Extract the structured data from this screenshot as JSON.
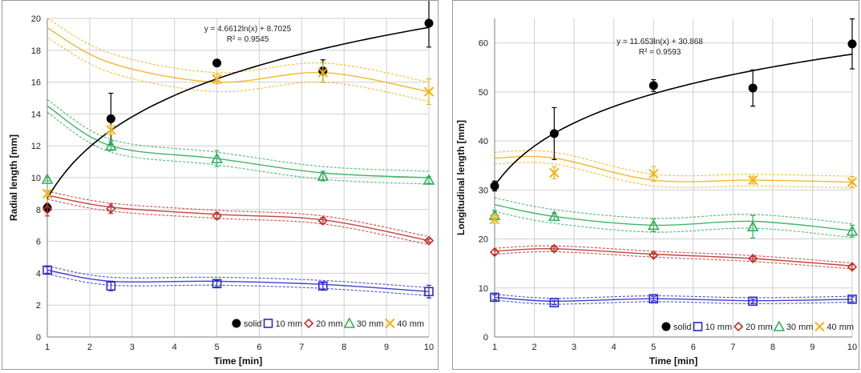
{
  "colors": {
    "solid": "#000000",
    "10 mm": "#2b2bc9",
    "20 mm": "#c0302a",
    "30 mm": "#2fae5a",
    "40 mm": "#f0b418",
    "grid": "#d0d0d0"
  },
  "chart_data": [
    {
      "type": "scatter",
      "xlabel": "Time [min]",
      "ylabel": "Radial length [mm]",
      "xlim": [
        1,
        10
      ],
      "ylim": [
        0,
        20
      ],
      "xticks": [
        1,
        2,
        3,
        4,
        5,
        6,
        7,
        8,
        9,
        10
      ],
      "yticks": [
        0,
        2,
        4,
        6,
        8,
        10,
        12,
        14,
        16,
        18,
        20
      ],
      "grid": true,
      "legend_position": "bottom-right",
      "x": [
        1,
        2.5,
        5,
        7.5,
        10
      ],
      "series": [
        {
          "name": "solid",
          "marker": "circle",
          "values": [
            8.1,
            13.7,
            17.2,
            16.7,
            19.7
          ],
          "error": [
            0.2,
            1.6,
            0.2,
            0.7,
            1.5
          ]
        },
        {
          "name": "10 mm",
          "marker": "square",
          "values": [
            4.2,
            3.2,
            3.35,
            3.2,
            2.85
          ],
          "error": [
            0.2,
            0.3,
            0.2,
            0.2,
            0.4
          ]
        },
        {
          "name": "20 mm",
          "marker": "diamond",
          "values": [
            8.0,
            8.05,
            7.6,
            7.3,
            6.05
          ],
          "error": [
            0.4,
            0.3,
            0.2,
            0.2,
            0.1
          ]
        },
        {
          "name": "30 mm",
          "marker": "triangle",
          "values": [
            9.9,
            12.0,
            11.2,
            10.1,
            9.85
          ],
          "error": [
            0.1,
            0.3,
            0.5,
            0.3,
            0.2
          ]
        },
        {
          "name": "40 mm",
          "marker": "x",
          "values": [
            9.0,
            13.0,
            16.2,
            16.6,
            15.4
          ],
          "error": [
            0.2,
            0.3,
            0.3,
            0.6,
            0.8
          ]
        }
      ],
      "trendline": {
        "a": 4.6612,
        "b": 8.7025
      },
      "equation": "y = 4.6612ln(x) + 8.7025",
      "r2": "R² = 0.9545",
      "curves": [
        {
          "series": "10 mm",
          "values": [
            4.2,
            3.5,
            3.5,
            3.3,
            2.85
          ],
          "band": 0.25
        },
        {
          "series": "20 mm",
          "values": [
            8.9,
            8.15,
            7.7,
            7.35,
            6.05
          ],
          "band": 0.25
        },
        {
          "series": "30 mm",
          "values": [
            14.5,
            12.0,
            11.2,
            10.3,
            10.0
          ],
          "band": 0.4
        },
        {
          "series": "40 mm",
          "values": [
            19.4,
            17.2,
            16.0,
            16.6,
            15.4
          ],
          "band": 0.6
        }
      ]
    },
    {
      "type": "scatter",
      "xlabel": "Time [min]",
      "ylabel": "Longitudinal length [mm]",
      "xlim": [
        1,
        10
      ],
      "ylim": [
        0,
        65
      ],
      "xticks": [
        1,
        2,
        3,
        4,
        5,
        6,
        7,
        8,
        9,
        10
      ],
      "yticks": [
        0,
        10,
        20,
        30,
        40,
        50,
        60
      ],
      "grid": true,
      "legend_position": "bottom-right",
      "x": [
        1,
        2.5,
        5,
        7.5,
        10
      ],
      "series": [
        {
          "name": "solid",
          "marker": "circle",
          "values": [
            30.8,
            41.5,
            51.3,
            50.8,
            59.8
          ],
          "error": [
            1.0,
            5.3,
            1.2,
            3.7,
            5.1
          ]
        },
        {
          "name": "10 mm",
          "marker": "square",
          "values": [
            8.1,
            7.0,
            7.8,
            7.3,
            7.7
          ],
          "error": [
            0.5,
            0.4,
            0.4,
            0.4,
            0.5
          ]
        },
        {
          "name": "20 mm",
          "marker": "diamond",
          "values": [
            17.3,
            18.0,
            16.7,
            16.0,
            14.3
          ],
          "error": [
            0.5,
            0.4,
            0.4,
            0.4,
            0.5
          ]
        },
        {
          "name": "30 mm",
          "marker": "triangle",
          "values": [
            24.8,
            24.6,
            22.8,
            22.5,
            21.6
          ],
          "error": [
            1.0,
            0.8,
            1.3,
            2.3,
            1.2
          ]
        },
        {
          "name": "40 mm",
          "marker": "x",
          "values": [
            24.0,
            33.5,
            33.3,
            32.0,
            31.6
          ],
          "error": [
            0.8,
            1.2,
            1.5,
            0.8,
            1.1
          ]
        }
      ],
      "trendline": {
        "a": 11.653,
        "b": 30.868
      },
      "equation": "y = 11.653ln(x) + 30.868",
      "r2": "R² = 0.9593",
      "curves": [
        {
          "series": "10 mm",
          "values": [
            8.1,
            7.3,
            7.8,
            7.4,
            7.7
          ],
          "band": 0.6
        },
        {
          "series": "20 mm",
          "values": [
            17.5,
            18.0,
            16.9,
            16.0,
            14.5
          ],
          "band": 0.6
        },
        {
          "series": "30 mm",
          "values": [
            27.0,
            24.6,
            22.8,
            23.6,
            21.7
          ],
          "band": 1.4
        },
        {
          "series": "40 mm",
          "values": [
            36.5,
            36.5,
            32.0,
            32.0,
            31.6
          ],
          "band": 1.2
        }
      ]
    }
  ]
}
